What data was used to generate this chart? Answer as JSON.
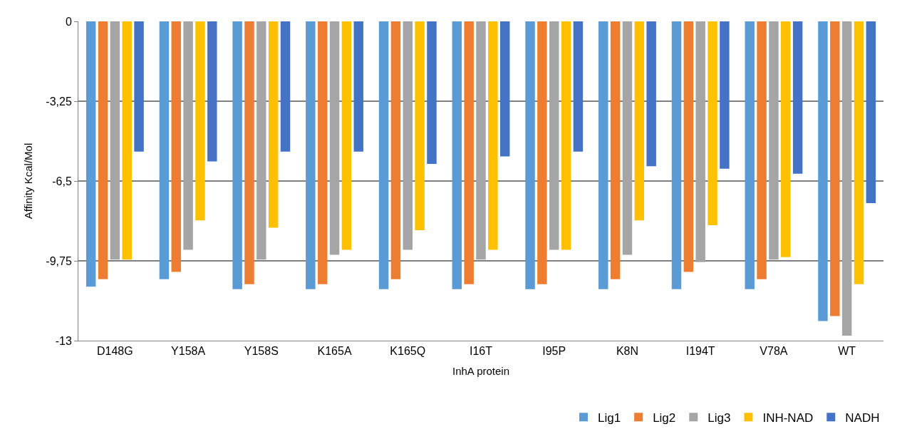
{
  "chart_data": {
    "type": "bar",
    "xlabel": "InhA protein",
    "ylabel": "Affinity Kcal/Mol",
    "categories": [
      "D148G",
      "Y158A",
      "Y158S",
      "K165A",
      "K165Q",
      "I16T",
      "I95P",
      "K8N",
      "I194T",
      "V78A",
      "WT"
    ],
    "series": [
      {
        "name": "Lig1",
        "color": "#5b9bd5",
        "values": [
          -10.8,
          -10.5,
          -10.9,
          -10.9,
          -10.9,
          -10.9,
          -10.9,
          -10.9,
          -10.9,
          -10.9,
          -12.2
        ]
      },
      {
        "name": "Lig2",
        "color": "#ed7d31",
        "values": [
          -10.5,
          -10.2,
          -10.7,
          -10.7,
          -10.5,
          -10.7,
          -10.7,
          -10.5,
          -10.2,
          -10.5,
          -12.0
        ]
      },
      {
        "name": "Lig3",
        "color": "#a5a5a5",
        "values": [
          -9.7,
          -9.3,
          -9.7,
          -9.5,
          -9.3,
          -9.7,
          -9.3,
          -9.5,
          -9.8,
          -9.7,
          -12.8
        ]
      },
      {
        "name": "INH-NAD",
        "color": "#ffc000",
        "values": [
          -9.7,
          -8.1,
          -8.4,
          -9.3,
          -8.5,
          -9.3,
          -9.3,
          -8.1,
          -8.3,
          -9.6,
          -10.7
        ]
      },
      {
        "name": "NADH",
        "color": "#4472c4",
        "values": [
          -5.3,
          -5.7,
          -5.3,
          -5.3,
          -5.8,
          -5.5,
          -5.3,
          -5.9,
          -6.0,
          -6.2,
          -7.4
        ]
      }
    ],
    "ylim": [
      -13,
      0
    ],
    "yticks": [
      {
        "value": 0,
        "label": "0"
      },
      {
        "value": -3.25,
        "label": "-3,25"
      },
      {
        "value": -6.5,
        "label": "-6,5"
      },
      {
        "value": -9.75,
        "label": "-9,75"
      },
      {
        "value": -13,
        "label": "-13"
      }
    ],
    "grid": "y",
    "legend": "bottom right"
  }
}
